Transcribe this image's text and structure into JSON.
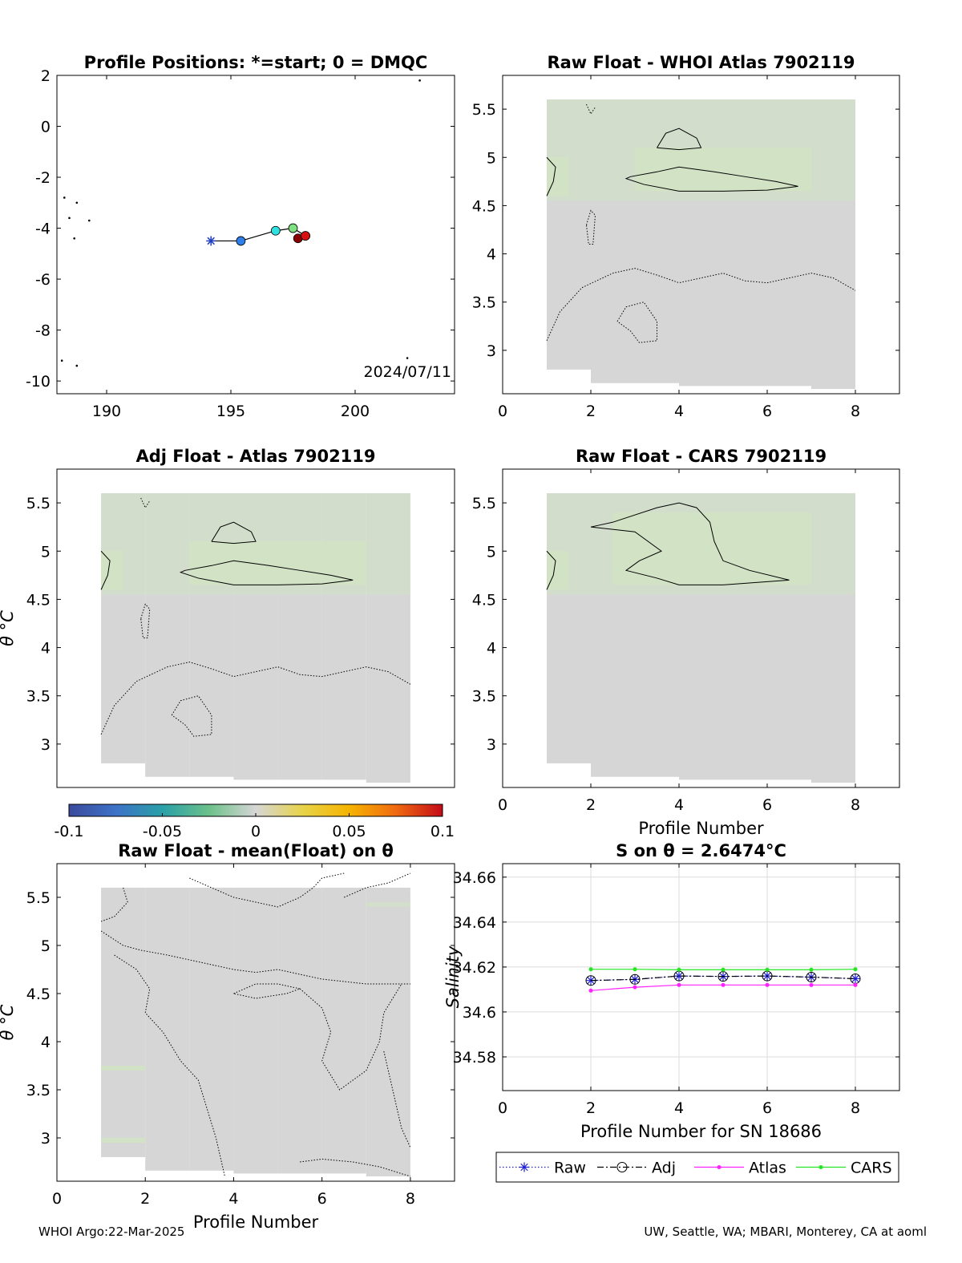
{
  "footer": {
    "left": "WHOI Argo:22-Mar-2025",
    "right": "UW, Seattle, WA; MBARI, Monterey, CA at aoml"
  },
  "colors": {
    "field_gray": "#d6d6d6",
    "field_green": "#d2e3c4",
    "raw": "#1f1fd6",
    "adj": "#000000",
    "atlas": "#ff22ff",
    "cars": "#22e622"
  },
  "colorbar": {
    "range": [
      -0.1,
      0.1
    ],
    "ticks": [
      "-0.1",
      "-0.05",
      "0",
      "0.05",
      "0.1"
    ],
    "colormap": [
      "#3b4a9c",
      "#3d72c7",
      "#2aa0a8",
      "#6cc08a",
      "#d6d6d6",
      "#e8d34a",
      "#f5b400",
      "#f06a10",
      "#c40b18"
    ]
  },
  "chart_data": [
    {
      "id": "positions",
      "type": "scatter",
      "title": "Profile Positions: *=start; 0 = DMQC",
      "xlim": [
        188,
        204
      ],
      "ylim": [
        -10.5,
        2
      ],
      "xticks": [
        "190",
        "195",
        "200"
      ],
      "yticks": [
        "2",
        "0",
        "-2",
        "-4",
        "-6",
        "-8",
        "-10"
      ],
      "date_text": "2024/07/11",
      "points": [
        {
          "x": 194.2,
          "y": -4.5,
          "marker": "star",
          "color": "#1f3fbf"
        },
        {
          "x": 195.4,
          "y": -4.5,
          "marker": "circle",
          "color": "#2f7fe8"
        },
        {
          "x": 196.8,
          "y": -4.1,
          "marker": "circle",
          "color": "#2fe0e0"
        },
        {
          "x": 197.5,
          "y": -4.0,
          "marker": "circle",
          "color": "#7fe07f"
        },
        {
          "x": 198.0,
          "y": -4.3,
          "marker": "circle",
          "color": "#e0a020"
        },
        {
          "x": 197.7,
          "y": -4.4,
          "marker": "circle",
          "color": "#8a0000"
        },
        {
          "x": 198.0,
          "y": -4.3,
          "marker": "circle",
          "color": "#d81010"
        }
      ],
      "islands": [
        {
          "x": 188.3,
          "y": -2.8
        },
        {
          "x": 188.8,
          "y": -3.0
        },
        {
          "x": 188.5,
          "y": -3.6
        },
        {
          "x": 189.3,
          "y": -3.7
        },
        {
          "x": 188.7,
          "y": -4.4
        },
        {
          "x": 188.2,
          "y": -9.2
        },
        {
          "x": 188.8,
          "y": -9.4
        },
        {
          "x": 202.1,
          "y": -9.1
        },
        {
          "x": 202.6,
          "y": 1.8
        }
      ]
    },
    {
      "id": "raw-atlas",
      "type": "heatmap",
      "title": "Raw Float - WHOI Atlas  7902119",
      "xlim": [
        0,
        9
      ],
      "ylim": [
        2.55,
        5.85
      ],
      "xticks": [
        "0",
        "2",
        "4",
        "6",
        "8"
      ],
      "yticks": [
        "3",
        "3.5",
        "4",
        "4.5",
        "5",
        "5.5"
      ],
      "ylabel": "",
      "xlabel": ""
    },
    {
      "id": "adj-atlas",
      "type": "heatmap",
      "title": "Adj Float - Atlas  7902119",
      "xlim": [
        0,
        9
      ],
      "ylim": [
        2.55,
        5.85
      ],
      "xticks": [],
      "yticks": [
        "3",
        "3.5",
        "4",
        "4.5",
        "5",
        "5.5"
      ],
      "ylabel": "θ °C",
      "xlabel": ""
    },
    {
      "id": "raw-cars",
      "type": "heatmap",
      "title": "Raw Float - CARS  7902119",
      "xlim": [
        0,
        9
      ],
      "ylim": [
        2.55,
        5.85
      ],
      "xticks": [
        "0",
        "2",
        "4",
        "6",
        "8"
      ],
      "yticks": [
        "3",
        "3.5",
        "4",
        "4.5",
        "5",
        "5.5"
      ],
      "ylabel": "",
      "xlabel": "Profile Number"
    },
    {
      "id": "raw-mean",
      "type": "heatmap",
      "title": "Raw Float - mean(Float) on θ",
      "xlim": [
        0,
        9
      ],
      "ylim": [
        2.55,
        5.85
      ],
      "xticks": [
        "0",
        "2",
        "4",
        "6",
        "8"
      ],
      "yticks": [
        "3",
        "3.5",
        "4",
        "4.5",
        "5",
        "5.5"
      ],
      "ylabel": "θ °C",
      "xlabel": "Profile Number"
    },
    {
      "id": "salinity",
      "type": "line",
      "title": "S on θ = 2.6474°C",
      "xlabel": "Profile Number for SN 18686",
      "ylabel": "Salinity",
      "xlim": [
        0,
        9
      ],
      "ylim": [
        34.565,
        34.666
      ],
      "xticks": [
        "0",
        "2",
        "4",
        "6",
        "8"
      ],
      "yticks": [
        "34.58",
        "34.6",
        "34.62",
        "34.64",
        "34.66"
      ],
      "x": [
        2,
        3,
        4,
        5,
        6,
        7,
        8
      ],
      "series": [
        {
          "name": "Raw",
          "values": [
            34.614,
            34.6145,
            34.616,
            34.6158,
            34.616,
            34.6155,
            34.6148
          ]
        },
        {
          "name": "Adj",
          "values": [
            34.614,
            34.6145,
            34.616,
            34.6158,
            34.616,
            34.6155,
            34.6148
          ]
        },
        {
          "name": "Atlas",
          "values": [
            34.6095,
            34.611,
            34.612,
            34.612,
            34.612,
            34.612,
            34.612
          ]
        },
        {
          "name": "CARS",
          "values": [
            34.619,
            34.619,
            34.6188,
            34.6188,
            34.6188,
            34.6188,
            34.619
          ]
        }
      ]
    }
  ]
}
